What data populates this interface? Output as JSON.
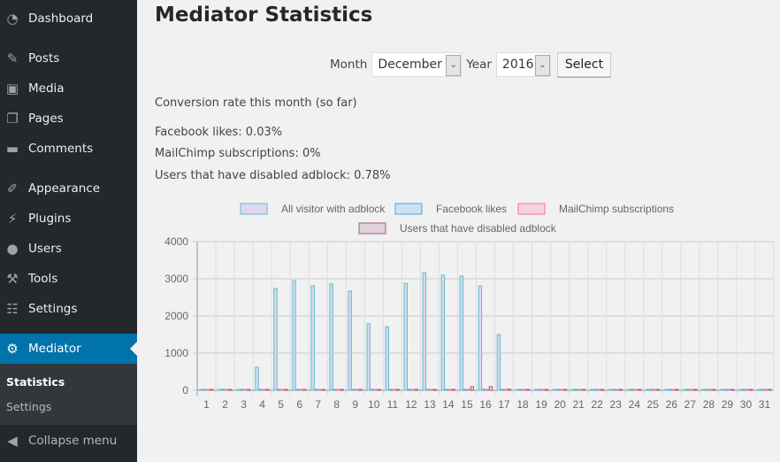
{
  "sidebar": {
    "items": [
      {
        "label": "Dashboard",
        "icon": "dashboard-icon"
      },
      {
        "label": "Posts",
        "icon": "pin-icon"
      },
      {
        "label": "Media",
        "icon": "media-icon"
      },
      {
        "label": "Pages",
        "icon": "pages-icon"
      },
      {
        "label": "Comments",
        "icon": "comment-icon"
      },
      {
        "label": "Appearance",
        "icon": "brush-icon"
      },
      {
        "label": "Plugins",
        "icon": "plugin-icon"
      },
      {
        "label": "Users",
        "icon": "user-icon"
      },
      {
        "label": "Tools",
        "icon": "wrench-icon"
      },
      {
        "label": "Settings",
        "icon": "settings-icon"
      },
      {
        "label": "Mediator",
        "icon": "gear-icon"
      }
    ],
    "submenu": [
      "Statistics",
      "Settings"
    ],
    "collapse": "Collapse menu"
  },
  "page": {
    "title": "Mediator Statistics",
    "form": {
      "month_label": "Month",
      "month": "December",
      "year_label": "Year",
      "year": "2016",
      "select": "Select"
    },
    "conversion_heading": "Conversion rate this month (so far)",
    "stats": [
      "Facebook likes: 0.03%",
      "MailChimp subscriptions: 0%",
      "Users that have disabled adblock: 0.78%"
    ]
  },
  "chart_data": {
    "type": "bar",
    "title": "",
    "xlabel": "",
    "ylabel": "",
    "ylim": [
      0,
      4000
    ],
    "yticks": [
      0,
      1000,
      2000,
      3000,
      4000
    ],
    "legend": "top",
    "categories": [
      "1",
      "2",
      "3",
      "4",
      "5",
      "6",
      "7",
      "8",
      "9",
      "10",
      "11",
      "12",
      "13",
      "14",
      "15",
      "16",
      "17",
      "18",
      "19",
      "20",
      "21",
      "22",
      "23",
      "24",
      "25",
      "26",
      "27",
      "28",
      "29",
      "30",
      "31"
    ],
    "series": [
      {
        "name": "All visitor with adblock",
        "fill": "#e0d6f2",
        "stroke": "#5bc0c8",
        "values": [
          0,
          0,
          0,
          620,
          2740,
          2950,
          2810,
          2860,
          2670,
          1790,
          1710,
          2880,
          3170,
          3100,
          3070,
          2810,
          1500,
          0,
          0,
          0,
          0,
          0,
          0,
          0,
          0,
          0,
          0,
          0,
          0,
          0,
          0
        ]
      },
      {
        "name": "Facebook likes",
        "fill": "#cde2ef",
        "stroke": "#4aa8e8",
        "values": [
          0,
          0,
          0,
          0,
          1,
          1,
          1,
          1,
          1,
          0,
          0,
          1,
          1,
          1,
          1,
          1,
          0,
          0,
          0,
          0,
          0,
          0,
          0,
          0,
          0,
          0,
          0,
          0,
          0,
          0,
          0
        ]
      },
      {
        "name": "MailChimp subscriptions",
        "fill": "#f5d5dc",
        "stroke": "#ff6f8f",
        "values": [
          0,
          0,
          0,
          0,
          0,
          0,
          0,
          0,
          0,
          0,
          0,
          0,
          0,
          0,
          0,
          0,
          0,
          0,
          0,
          0,
          0,
          0,
          0,
          0,
          0,
          0,
          0,
          0,
          0,
          0,
          0
        ]
      },
      {
        "name": "Users that have disabled adblock",
        "fill": "#e0d2da",
        "stroke": "#a0607e",
        "values": [
          0,
          0,
          0,
          0,
          0,
          0,
          0,
          0,
          0,
          0,
          0,
          0,
          0,
          0,
          100,
          100,
          30,
          0,
          0,
          0,
          0,
          0,
          0,
          0,
          0,
          0,
          0,
          0,
          0,
          0,
          0
        ]
      }
    ]
  }
}
